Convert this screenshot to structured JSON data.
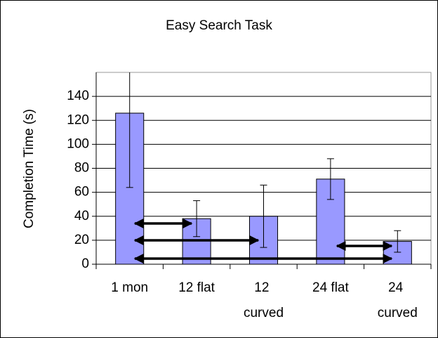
{
  "chart_data": {
    "type": "bar",
    "title": "Easy Search Task",
    "ylabel": "Completion Time (s)",
    "categories": [
      "1 mon",
      "12 flat",
      "12 curved",
      "24 flat",
      "24 curved"
    ],
    "values": [
      126,
      38,
      40,
      71,
      19
    ],
    "errors": [
      62,
      15,
      26,
      17,
      9
    ],
    "color": "#9999ff",
    "ylim": [
      0,
      160
    ],
    "yticks": [
      0,
      20,
      40,
      60,
      80,
      100,
      120,
      140
    ],
    "grid": true
  }
}
